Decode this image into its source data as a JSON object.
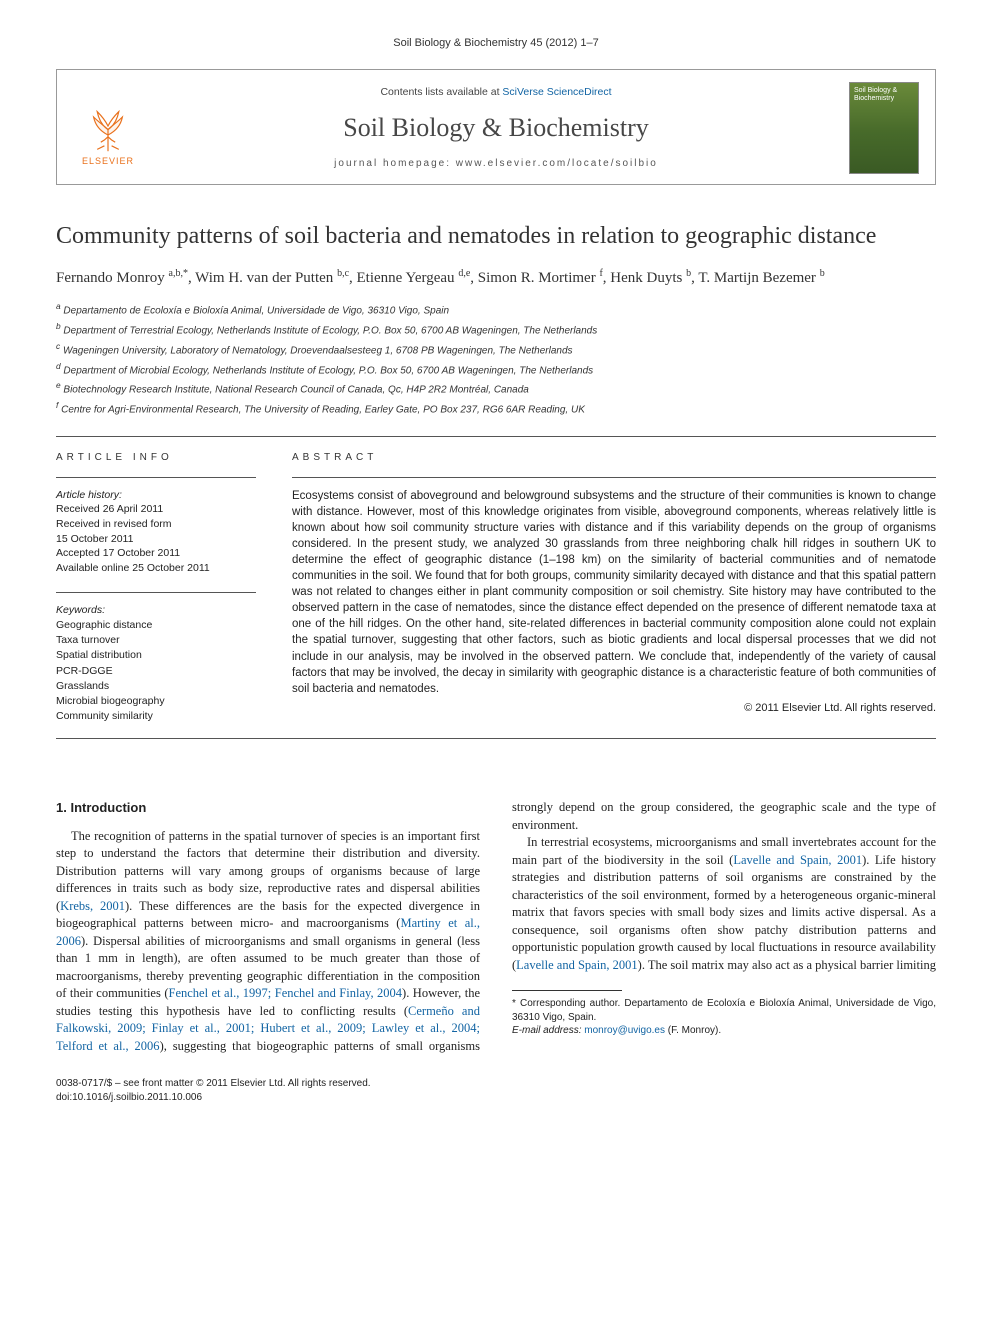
{
  "running_head": "Soil Biology & Biochemistry 45 (2012) 1–7",
  "header": {
    "contents_prefix": "Contents lists available at ",
    "contents_link": "SciVerse ScienceDirect",
    "journal_name": "Soil Biology & Biochemistry",
    "homepage_prefix": "journal homepage: ",
    "homepage_url": "www.elsevier.com/locate/soilbio",
    "elsevier_label": "ELSEVIER",
    "cover_label": "Soil Biology & Biochemistry"
  },
  "title": "Community patterns of soil bacteria and nematodes in relation to geographic distance",
  "authors_html": "Fernando Monroy <sup>a,b,*</sup>, Wim H. van der Putten <sup>b,c</sup>, Etienne Yergeau <sup>d,e</sup>, Simon R. Mortimer <sup>f</sup>, Henk Duyts <sup>b</sup>, T. Martijn Bezemer <sup>b</sup>",
  "affiliations": [
    "a Departamento de Ecoloxía e Bioloxía Animal, Universidade de Vigo, 36310 Vigo, Spain",
    "b Department of Terrestrial Ecology, Netherlands Institute of Ecology, P.O. Box 50, 6700 AB Wageningen, The Netherlands",
    "c Wageningen University, Laboratory of Nematology, Droevendaalsesteeg 1, 6708 PB Wageningen, The Netherlands",
    "d Department of Microbial Ecology, Netherlands Institute of Ecology, P.O. Box 50, 6700 AB Wageningen, The Netherlands",
    "e Biotechnology Research Institute, National Research Council of Canada, Qc, H4P 2R2 Montréal, Canada",
    "f Centre for Agri-Environmental Research, The University of Reading, Earley Gate, PO Box 237, RG6 6AR Reading, UK"
  ],
  "info": {
    "label_info": "ARTICLE INFO",
    "label_abstract": "ABSTRACT",
    "history_head": "Article history:",
    "history": [
      "Received 26 April 2011",
      "Received in revised form",
      "15 October 2011",
      "Accepted 17 October 2011",
      "Available online 25 October 2011"
    ],
    "keywords_head": "Keywords:",
    "keywords": [
      "Geographic distance",
      "Taxa turnover",
      "Spatial distribution",
      "PCR-DGGE",
      "Grasslands",
      "Microbial biogeography",
      "Community similarity"
    ]
  },
  "abstract": "Ecosystems consist of aboveground and belowground subsystems and the structure of their communities is known to change with distance. However, most of this knowledge originates from visible, aboveground components, whereas relatively little is known about how soil community structure varies with distance and if this variability depends on the group of organisms considered. In the present study, we analyzed 30 grasslands from three neighboring chalk hill ridges in southern UK to determine the effect of geographic distance (1–198 km) on the similarity of bacterial communities and of nematode communities in the soil. We found that for both groups, community similarity decayed with distance and that this spatial pattern was not related to changes either in plant community composition or soil chemistry. Site history may have contributed to the observed pattern in the case of nematodes, since the distance effect depended on the presence of different nematode taxa at one of the hill ridges. On the other hand, site-related differences in bacterial community composition alone could not explain the spatial turnover, suggesting that other factors, such as biotic gradients and local dispersal processes that we did not include in our analysis, may be involved in the observed pattern. We conclude that, independently of the variety of causal factors that may be involved, the decay in similarity with geographic distance is a characteristic feature of both communities of soil bacteria and nematodes.",
  "copyright": "© 2011 Elsevier Ltd. All rights reserved.",
  "intro_heading": "1. Introduction",
  "intro_p1_a": "The recognition of patterns in the spatial turnover of species is an important first step to understand the factors that determine their distribution and diversity. Distribution patterns will vary among groups of organisms because of large differences in traits such as body size, reproductive rates and dispersal abilities (",
  "intro_p1_cite1": "Krebs, 2001",
  "intro_p1_b": "). These differences are the basis for the expected divergence in biogeographical patterns between micro- and macroorganisms (",
  "intro_p1_cite2": "Martiny et al., 2006",
  "intro_p1_c": "). Dispersal abilities of microorganisms and small organisms in general (less than 1 mm in length), are often assumed to be much greater than those of macroorganisms, thereby preventing geographic differentiation in the composition ",
  "intro_p1_d": "of their communities (",
  "intro_p1_cite3": "Fenchel et al., 1997; Fenchel and Finlay, 2004",
  "intro_p1_e": "). However, the studies testing this hypothesis have led to conflicting results (",
  "intro_p1_cite4": "Cermeño and Falkowski, 2009; Finlay et al., 2001; Hubert et al., 2009; Lawley et al., 2004; Telford et al., 2006",
  "intro_p1_f": "), suggesting that biogeographic patterns of small organisms strongly depend on the group considered, the geographic scale and the type of environment.",
  "intro_p2_a": "In terrestrial ecosystems, microorganisms and small invertebrates account for the main part of the biodiversity in the soil (",
  "intro_p2_cite1": "Lavelle and Spain, 2001",
  "intro_p2_b": "). Life history strategies and distribution patterns of soil organisms are constrained by the characteristics of the soil environment, formed by a heterogeneous organic-mineral matrix that favors species with small body sizes and limits active dispersal. As a consequence, soil organisms often show patchy distribution patterns and opportunistic population growth caused by local fluctuations in resource availability (",
  "intro_p2_cite2": "Lavelle and Spain, 2001",
  "intro_p2_c": "). The soil matrix may also act as a physical barrier limiting",
  "footnotes": {
    "corr": "* Corresponding author. Departamento de Ecoloxía e Bioloxía Animal, Universidade de Vigo, 36310 Vigo, Spain.",
    "email_label": "E-mail address:",
    "email": "monroy@uvigo.es",
    "email_tail": " (F. Monroy)."
  },
  "footer": {
    "line1": "0038-0717/$ – see front matter © 2011 Elsevier Ltd. All rights reserved.",
    "line2": "doi:10.1016/j.soilbio.2011.10.006"
  },
  "colors": {
    "link": "#1264a3",
    "elsevier": "#e9711c",
    "rule": "#555555",
    "text": "#222222"
  }
}
